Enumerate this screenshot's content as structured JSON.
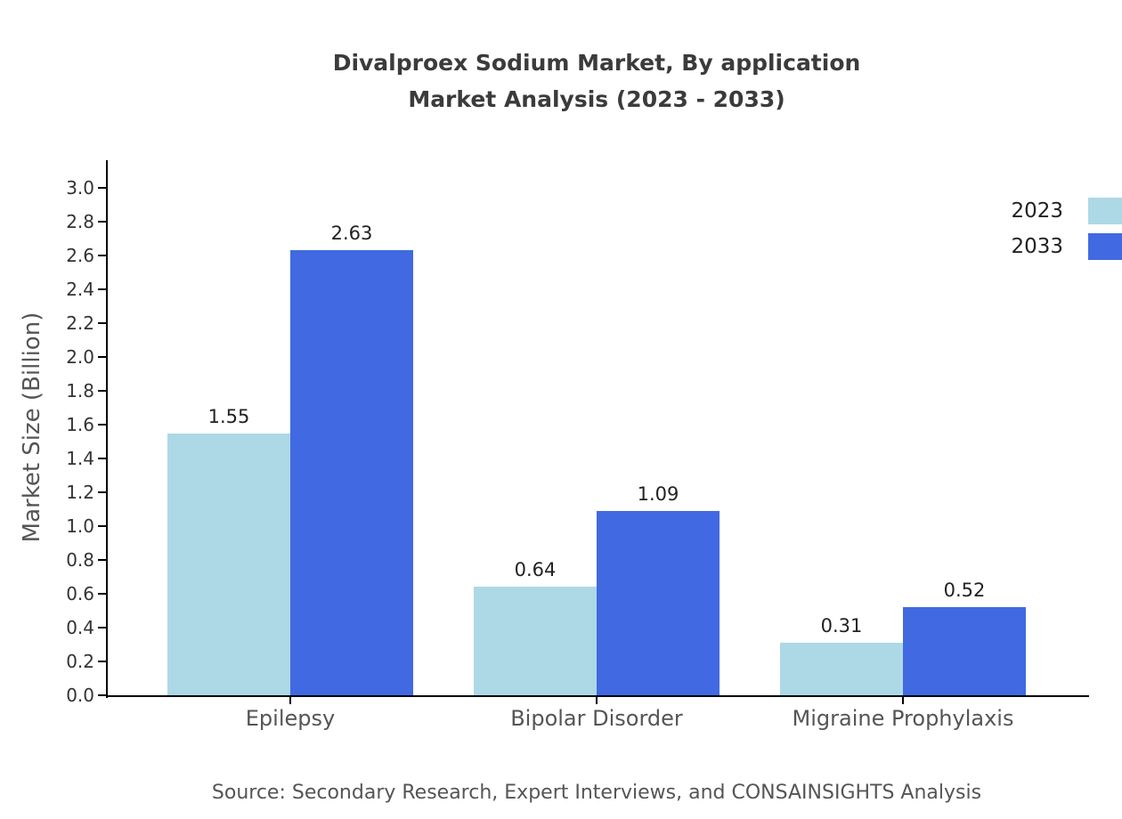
{
  "title": {
    "line1": "Divalproex Sodium Market, By application",
    "line2": "Market Analysis (2023 - 2033)"
  },
  "source": "Source: Secondary Research, Expert Interviews, and CONSAINSIGHTS Analysis",
  "chart_data": {
    "type": "bar",
    "title": "Divalproex Sodium Market, By application Market Analysis (2023 - 2033)",
    "categories": [
      "Epilepsy",
      "Bipolar Disorder",
      "Migraine Prophylaxis"
    ],
    "series": [
      {
        "name": "2023",
        "color": "#add8e6",
        "values": [
          1.55,
          0.64,
          0.31
        ]
      },
      {
        "name": "2033",
        "color": "#4169e1",
        "values": [
          2.63,
          1.09,
          0.52
        ]
      }
    ],
    "xlabel": "",
    "ylabel": "Market Size (Billion)",
    "ylim": [
      0,
      3.0
    ],
    "ytick_step": 0.2,
    "grid": false,
    "legend_position": "upper right",
    "value_labels": true
  },
  "colors": {
    "title_text": "#3b3b3b",
    "axis": "#000000",
    "tick_text": "#333333",
    "muted_text": "#555555",
    "background": "#ffffff"
  }
}
